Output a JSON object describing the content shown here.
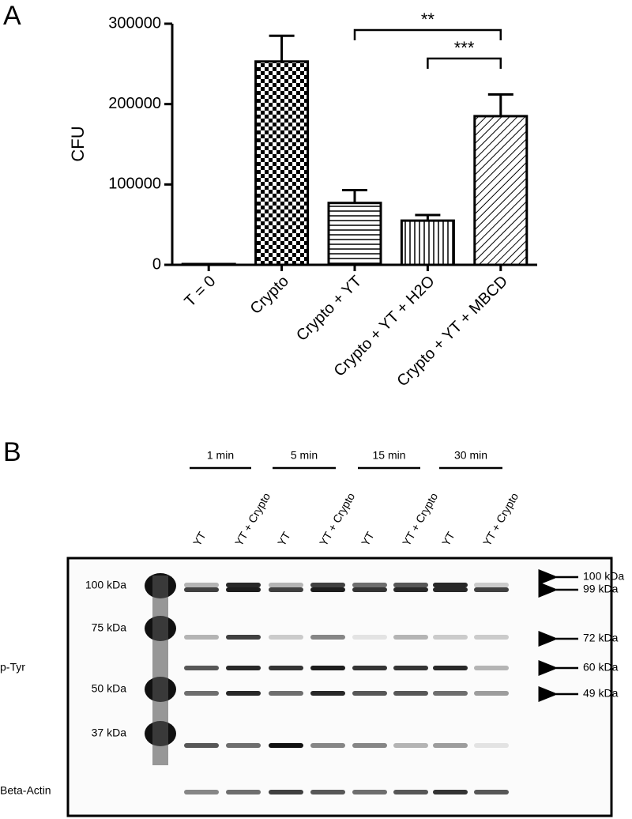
{
  "panel_labels": [
    "A",
    "B"
  ],
  "chart_data": {
    "type": "bar",
    "ylabel": "CFU",
    "categories": [
      "T = 0",
      "Crypto",
      "Crypto + YT",
      "Crypto + YT + H2O",
      "Crypto + YT + MBCD"
    ],
    "values": [
      1000,
      253000,
      77000,
      55000,
      185000
    ],
    "errors": [
      null,
      32000,
      16000,
      7000,
      27000
    ],
    "fills": [
      "black",
      "checker",
      "horizontal",
      "vertical",
      "diagonal"
    ],
    "ylim": [
      0,
      300000
    ],
    "yticks": [
      0,
      100000,
      200000,
      300000
    ],
    "annotations": [
      {
        "text": "**",
        "between": [
          "Crypto + YT",
          "Crypto + YT + MBCD"
        ]
      },
      {
        "text": "***",
        "between": [
          "Crypto + YT + H2O",
          "Crypto + YT + MBCD"
        ]
      }
    ]
  },
  "blot": {
    "time_groups": [
      "1 min",
      "5 min",
      "15 min",
      "30 min"
    ],
    "lanes": [
      "YT",
      "YT + Crypto",
      "YT",
      "YT + Crypto",
      "YT",
      "YT + Crypto",
      "YT",
      "YT + Crypto"
    ],
    "ladder": [
      "100 kDa",
      "75 kDa",
      "50 kDa",
      "37 kDa"
    ],
    "row_labels": [
      "p-Tyr",
      "Beta-Actin"
    ],
    "markers": [
      "100 kDa",
      "99 kDa",
      "72 kDa",
      "60 kDa",
      "49 kDa"
    ]
  }
}
